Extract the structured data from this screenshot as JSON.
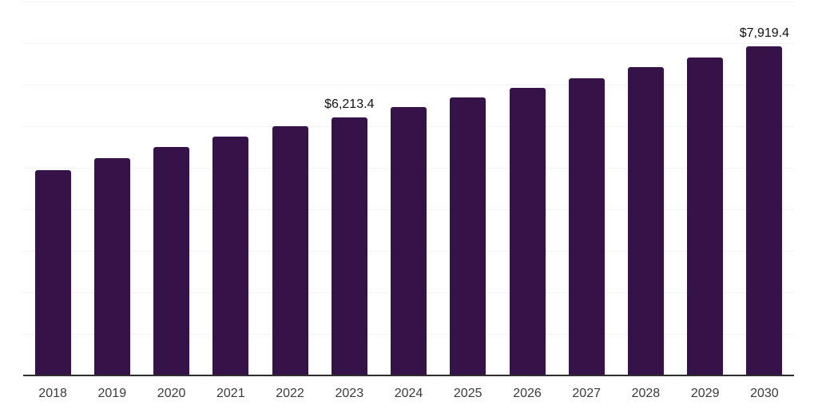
{
  "chart_data": {
    "type": "bar",
    "title": "",
    "xlabel": "",
    "ylabel": "",
    "categories": [
      "2018",
      "2019",
      "2020",
      "2021",
      "2022",
      "2023",
      "2024",
      "2025",
      "2026",
      "2027",
      "2028",
      "2029",
      "2030"
    ],
    "values": [
      4940,
      5230,
      5510,
      5760,
      6000,
      6213.4,
      6460,
      6700,
      6920,
      7150,
      7420,
      7660,
      7919.4
    ],
    "value_labels": [
      "",
      "",
      "",
      "",
      "",
      "$6,213.4",
      "",
      "",
      "",
      "",
      "",
      "",
      "$7,919.4"
    ],
    "ylim": [
      0,
      9000
    ],
    "gridline_step": 1000,
    "grid": "horizontal",
    "y_axis_tick_labels": "none",
    "legend": "none",
    "colors": {
      "bar": "#351349",
      "value_label": "#111111",
      "tick_label": "#3b3b3b",
      "gridline": "#f2f2f2",
      "axis_line": "#2e2e2e",
      "background": "#ffffff"
    }
  }
}
